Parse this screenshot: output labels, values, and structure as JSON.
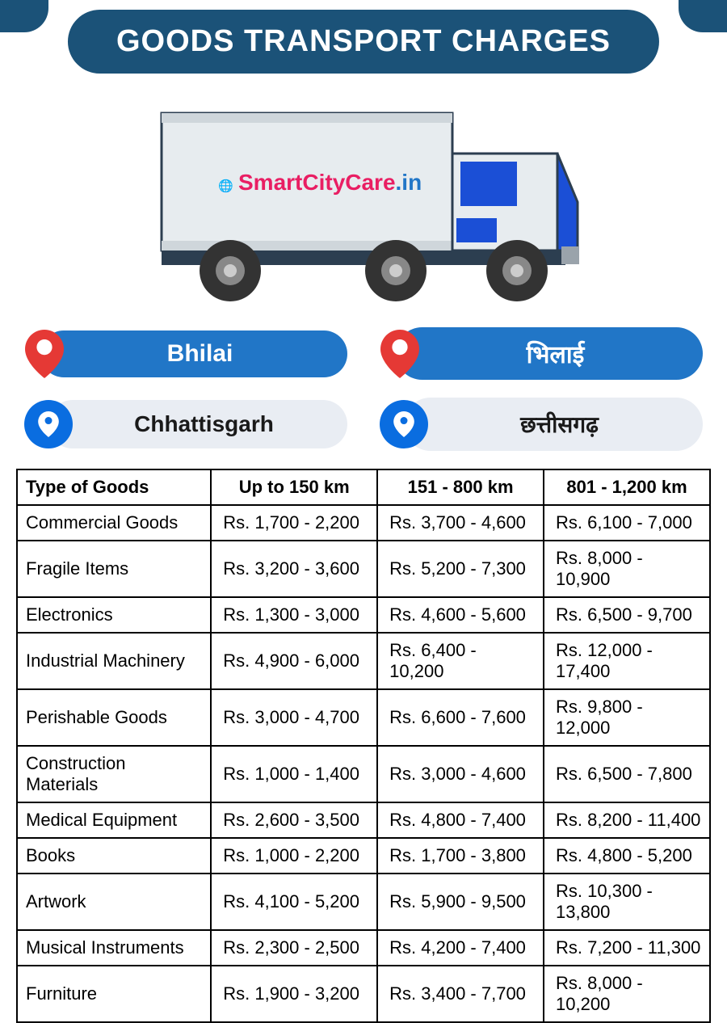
{
  "title": "GOODS TRANSPORT CHARGES",
  "brand": {
    "name_main": "SmartCityCare",
    "name_suffix": ".in",
    "color_main": "#e91e63",
    "color_suffix": "#2176c7"
  },
  "locations": {
    "city_en": "Bhilai",
    "city_hi": "भिलाई",
    "state_en": "Chhattisgarh",
    "state_hi": "छत्तीसगढ़"
  },
  "colors": {
    "header_bg": "#1b5278",
    "pill_blue": "#2176c7",
    "pill_grey": "#e9edf3",
    "pin_red": "#e53935",
    "pin_blue": "#0a6de0",
    "truck_body": "#e7ecef",
    "truck_accent": "#1b4fd6",
    "truck_dark": "#2c3e50",
    "wheel": "#333333"
  },
  "table": {
    "columns": [
      "Type of Goods",
      "Up to 150 km",
      "151 - 800 km",
      "801 - 1,200 km"
    ],
    "rows": [
      [
        "Commercial Goods",
        "Rs. 1,700 - 2,200",
        "Rs. 3,700 - 4,600",
        "Rs. 6,100 - 7,000"
      ],
      [
        "Fragile Items",
        "Rs. 3,200 - 3,600",
        "Rs. 5,200 - 7,300",
        "Rs. 8,000 - 10,900"
      ],
      [
        "Electronics",
        "Rs. 1,300 - 3,000",
        "Rs. 4,600 - 5,600",
        "Rs. 6,500 - 9,700"
      ],
      [
        "Industrial Machinery",
        "Rs. 4,900 - 6,000",
        "Rs. 6,400 - 10,200",
        "Rs. 12,000 - 17,400"
      ],
      [
        "Perishable Goods",
        "Rs. 3,000 - 4,700",
        "Rs. 6,600 - 7,600",
        "Rs. 9,800 - 12,000"
      ],
      [
        "Construction Materials",
        "Rs. 1,000 - 1,400",
        "Rs. 3,000 - 4,600",
        "Rs. 6,500 - 7,800"
      ],
      [
        "Medical Equipment",
        "Rs. 2,600 - 3,500",
        "Rs. 4,800 - 7,400",
        "Rs. 8,200 - 11,400"
      ],
      [
        "Books",
        "Rs. 1,000 - 2,200",
        "Rs. 1,700 - 3,800",
        "Rs. 4,800 - 5,200"
      ],
      [
        "Artwork",
        "Rs. 4,100 - 5,200",
        "Rs. 5,900 - 9,500",
        "Rs. 10,300 - 13,800"
      ],
      [
        "Musical Instruments",
        "Rs. 2,300 - 2,500",
        "Rs. 4,200 - 7,400",
        "Rs. 7,200 - 11,300"
      ],
      [
        "Furniture",
        "Rs. 1,900 - 3,200",
        "Rs. 3,400 - 7,700",
        "Rs. 8,000 - 10,200"
      ]
    ]
  }
}
